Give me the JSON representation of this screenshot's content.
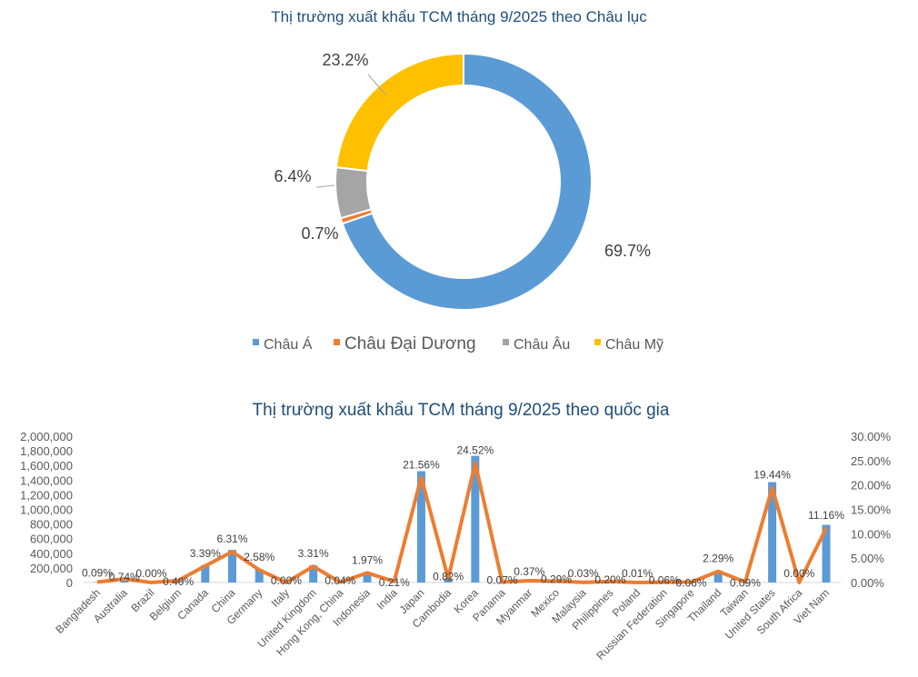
{
  "chart_data": [
    {
      "type": "pie",
      "variant": "donut",
      "title": "Thị trường xuất khẩu TCM tháng 9/2025 theo Châu lục",
      "legend_position": "bottom",
      "slices": [
        {
          "name": "Châu Á",
          "value": 69.7,
          "label": "69.7%",
          "color": "#5B9BD5"
        },
        {
          "name": "Châu Đại Dương",
          "value": 0.7,
          "label": "0.7%",
          "color": "#ED7D31"
        },
        {
          "name": "Châu Âu",
          "value": 6.4,
          "label": "6.4%",
          "color": "#A5A5A5"
        },
        {
          "name": "Châu Mỹ",
          "value": 23.2,
          "label": "23.2%",
          "color": "#FFC000"
        }
      ]
    },
    {
      "type": "bar",
      "combo": "bar + line (secondary axis)",
      "title": "Thị trường xuất khẩu TCM tháng 9/2025 theo quốc gia",
      "categories": [
        "Bangladesh",
        "Australia",
        "Brazil",
        "Belgium",
        "Canada",
        "China",
        "Germany",
        "Italy",
        "United Kingdom",
        "Hong Kong, China",
        "Indonesia",
        "India",
        "Japan",
        "Cambodia",
        "Korea",
        "Panama",
        "Myanmar",
        "Mexico",
        "Malaysia",
        "Philippines",
        "Poland",
        "Russian Federation",
        "Singapore",
        "Thailand",
        "Taiwan",
        "United States",
        "South Africa",
        "Viet Nam"
      ],
      "series": [
        {
          "type": "bar",
          "axis": "left",
          "color": "#5B9BD5",
          "values": [
            6000,
            52000,
            0,
            28000,
            239000,
            445000,
            182000,
            0,
            234000,
            3000,
            139000,
            15000,
            1522000,
            58000,
            1731000,
            5000,
            26000,
            20000,
            2000,
            14000,
            1000,
            4000,
            4000,
            162000,
            6000,
            1372000,
            0,
            788000
          ]
        },
        {
          "type": "line",
          "axis": "right",
          "color": "#ED7D31",
          "values": [
            0.09,
            0.74,
            0.0,
            0.4,
            3.39,
            6.31,
            2.58,
            0.0,
            3.31,
            0.04,
            1.97,
            0.21,
            21.56,
            0.82,
            24.52,
            0.07,
            0.37,
            0.29,
            0.03,
            0.2,
            0.01,
            0.06,
            0.06,
            2.29,
            0.09,
            19.44,
            0.0,
            11.16
          ],
          "labels": [
            "0.09%",
            "0.74%",
            "0.00%",
            "0.40%",
            "3.39%",
            "6.31%",
            "2.58%",
            "0.00%",
            "3.31%",
            "0.04%",
            "1.97%",
            "0.21%",
            "21.56%",
            "0.82%",
            "24.52%",
            "0.07%",
            "0.37%",
            "0.29%",
            "0.03%",
            "0.20%",
            "0.01%",
            "0.06%",
            "0.06%",
            "2.29%",
            "0.09%",
            "19.44%",
            "0.00%",
            "11.16%"
          ]
        }
      ],
      "y_left": {
        "range": [
          0,
          2000000
        ],
        "ticks": [
          "0",
          "200,000",
          "400,000",
          "600,000",
          "800,000",
          "1,000,000",
          "1,200,000",
          "1,400,000",
          "1,600,000",
          "1,800,000",
          "2,000,000"
        ]
      },
      "y_right": {
        "range": [
          0,
          30
        ],
        "ticks": [
          "0.00%",
          "5.00%",
          "10.00%",
          "15.00%",
          "20.00%",
          "25.00%",
          "30.00%"
        ]
      },
      "grid": false
    }
  ]
}
